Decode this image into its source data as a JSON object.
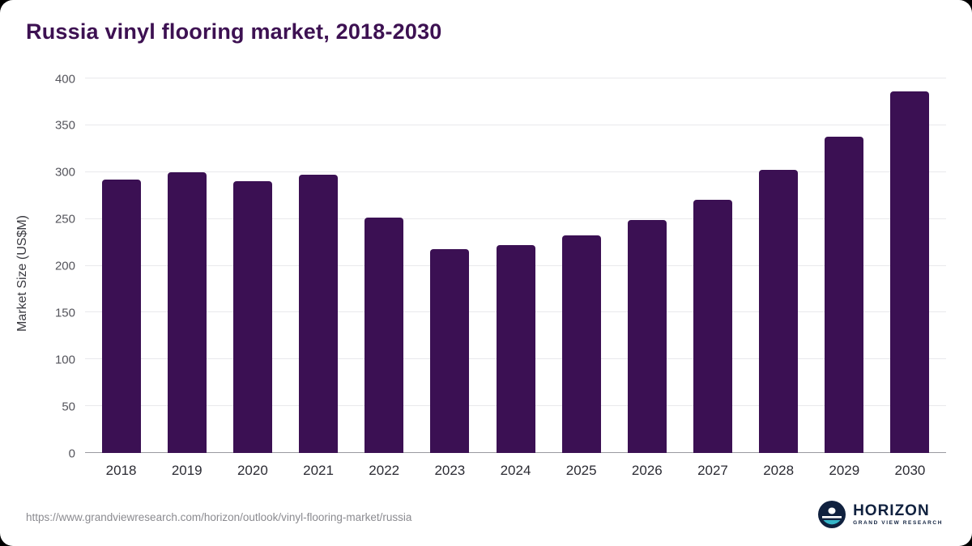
{
  "title": "Russia vinyl flooring market, 2018-2030",
  "source_url": "https://www.grandviewresearch.com/horizon/outlook/vinyl-flooring-market/russia",
  "logo": {
    "name": "HORIZON",
    "subtitle": "GRAND VIEW RESEARCH"
  },
  "colors": {
    "bar": "#3b1053",
    "title": "#3d1152",
    "logo_navy": "#10213f",
    "logo_teal": "#35b6c9"
  },
  "chart_data": {
    "type": "bar",
    "title": "Russia vinyl flooring market, 2018-2030",
    "categories": [
      "2018",
      "2019",
      "2020",
      "2021",
      "2022",
      "2023",
      "2024",
      "2025",
      "2026",
      "2027",
      "2028",
      "2029",
      "2030"
    ],
    "values": [
      292,
      300,
      290,
      297,
      251,
      218,
      222,
      232,
      249,
      270,
      302,
      338,
      386
    ],
    "xlabel": "",
    "ylabel": "Market Size (US$M)",
    "ylim": [
      0,
      400
    ],
    "yticks": [
      0,
      50,
      100,
      150,
      200,
      250,
      300,
      350,
      400
    ],
    "grid": true,
    "legend": false,
    "bar_color": "#3b1053"
  }
}
